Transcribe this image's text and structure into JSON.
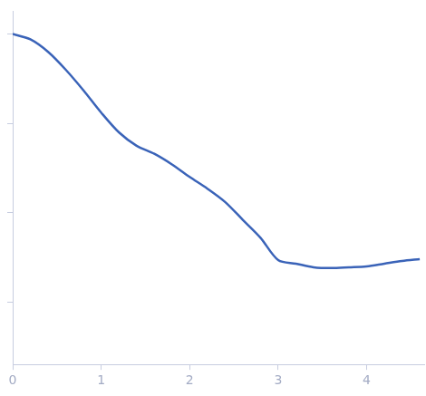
{
  "chart_data": {
    "type": "line",
    "log": "y",
    "tick_labels": "x",
    "grid": false,
    "color": "#3a63b8",
    "x": [
      0,
      0.2,
      0.4,
      0.6,
      0.8,
      1.0,
      1.2,
      1.4,
      1.6,
      1.8,
      2.0,
      2.2,
      2.4,
      2.6,
      2.8,
      3.0,
      3.2,
      3.4,
      3.6,
      3.8,
      4.0,
      4.2,
      4.4,
      4.6
    ],
    "values": [
      1,
      0.871,
      0.631,
      0.398,
      0.234,
      0.132,
      0.0794,
      0.0562,
      0.0457,
      0.0347,
      0.0251,
      0.0186,
      0.0132,
      0.00832,
      0.00525,
      0.00295,
      0.00269,
      0.00245,
      0.0024,
      0.00245,
      0.00251,
      0.00269,
      0.00288,
      0.00302
    ],
    "xlim": [
      0,
      4.65
    ],
    "xticks": [
      0,
      1,
      2,
      3,
      4
    ],
    "ylim": [
      0.0002,
      1.8
    ],
    "yticks": [
      0.001,
      0.01,
      0.1,
      1
    ]
  }
}
